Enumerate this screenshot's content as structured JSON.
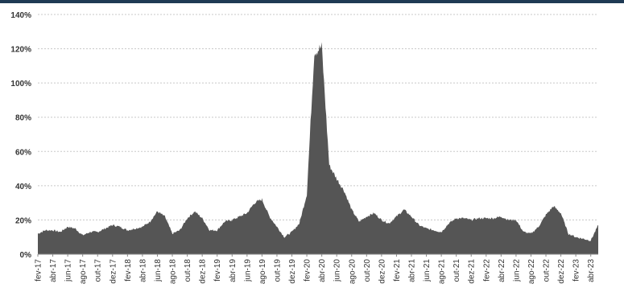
{
  "chart_data": {
    "type": "area",
    "title": "",
    "xlabel": "",
    "ylabel": "",
    "ylim": [
      0,
      140
    ],
    "y_unit": "%",
    "grid": true,
    "legend": "none",
    "color": "#555555",
    "yticks": [
      "0%",
      "20%",
      "40%",
      "60%",
      "80%",
      "100%",
      "120%",
      "140%"
    ],
    "xticks": [
      "fev-17",
      "abr-17",
      "jun-17",
      "ago-17",
      "out-17",
      "dez-17",
      "fev-18",
      "abr-18",
      "jun-18",
      "ago-18",
      "out-18",
      "dez-18",
      "fev-19",
      "abr-19",
      "jun-19",
      "ago-19",
      "out-19",
      "dez-19",
      "fev-20",
      "abr-20",
      "jun-20",
      "ago-20",
      "out-20",
      "dez-20",
      "fev-21",
      "abr-21",
      "jun-21",
      "ago-21",
      "out-21",
      "dez-21",
      "fev-22",
      "abr-22",
      "jun-22",
      "ago-22",
      "out-22",
      "dez-22",
      "fev-23",
      "abr-23"
    ],
    "series": [
      {
        "x": [
          "fev-17",
          "mar-17",
          "abr-17",
          "mai-17",
          "jun-17",
          "jul-17",
          "ago-17",
          "set-17",
          "out-17",
          "nov-17",
          "dez-17",
          "jan-18",
          "fev-18",
          "mar-18",
          "abr-18",
          "mai-18",
          "jun-18",
          "jul-18",
          "ago-18",
          "set-18",
          "out-18",
          "nov-18",
          "dez-18",
          "jan-19",
          "fev-19",
          "mar-19",
          "abr-19",
          "mai-19",
          "jun-19",
          "jul-19",
          "ago-19",
          "set-19",
          "out-19",
          "nov-19",
          "dez-19",
          "jan-20",
          "fev-20",
          "mar-20",
          "abr-20",
          "mai-20",
          "jun-20",
          "jul-20",
          "ago-20",
          "set-20",
          "out-20",
          "nov-20",
          "dez-20",
          "jan-21",
          "fev-21",
          "mar-21",
          "abr-21",
          "mai-21",
          "jun-21",
          "jul-21",
          "ago-21",
          "set-21",
          "out-21",
          "nov-21",
          "dez-21",
          "jan-22",
          "fev-22",
          "mar-22",
          "abr-22",
          "mai-22",
          "jun-22",
          "jul-22",
          "ago-22",
          "set-22",
          "out-22",
          "nov-22",
          "dez-22",
          "jan-23",
          "fev-23",
          "mar-23",
          "abr-23",
          "mai-23"
        ],
        "values": [
          12,
          14,
          14,
          13,
          16,
          15,
          11,
          13,
          13,
          15,
          17,
          16,
          14,
          15,
          16,
          19,
          25,
          22,
          12,
          14,
          21,
          25,
          21,
          14,
          14,
          19,
          20,
          22,
          24,
          30,
          32,
          22,
          16,
          10,
          13,
          18,
          35,
          118,
          121,
          52,
          44,
          37,
          26,
          19,
          22,
          24,
          20,
          18,
          22,
          26,
          22,
          17,
          15,
          14,
          13,
          18,
          21,
          21,
          20,
          21,
          21,
          21,
          22,
          20,
          20,
          13,
          12,
          16,
          23,
          28,
          24,
          12,
          10,
          9,
          8,
          17
        ]
      }
    ]
  }
}
